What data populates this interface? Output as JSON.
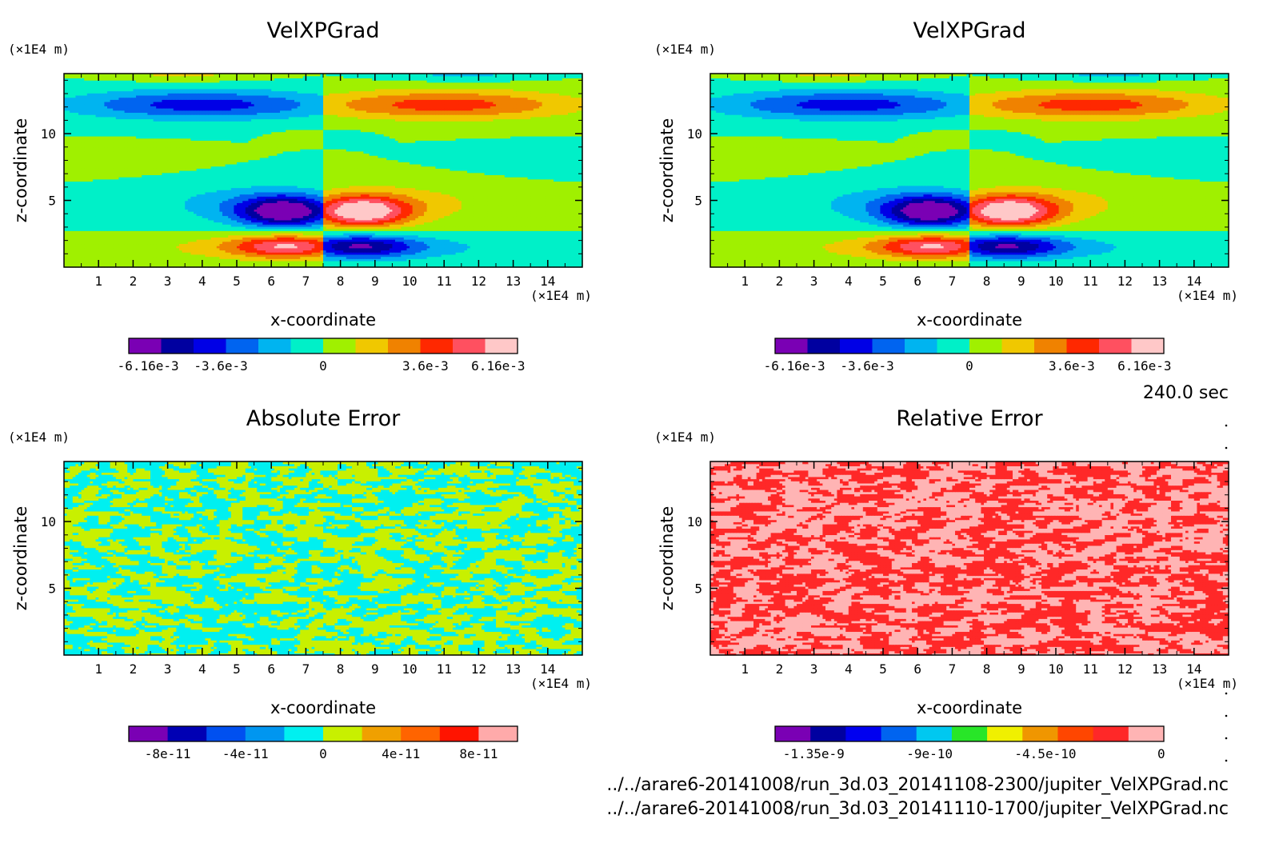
{
  "time_label": "240.0 sec",
  "files": [
    "../../arare6-20141008/run_3d.03_20141108-2300/jupiter_VelXPGrad.nc",
    "../../arare6-20141008/run_3d.03_20141110-1700/jupiter_VelXPGrad.nc"
  ],
  "chart_data": [
    {
      "type": "heatmap",
      "title": "VelXPGrad",
      "xlabel": "x-coordinate",
      "ylabel": "z-coordinate",
      "x_unit": "(×1E4 m)",
      "y_unit": "(×1E4 m)",
      "xlim": [
        0,
        15
      ],
      "ylim": [
        0,
        14.5
      ],
      "x_ticks": [
        1,
        2,
        3,
        4,
        5,
        6,
        7,
        8,
        9,
        10,
        11,
        12,
        13,
        14
      ],
      "y_ticks": [
        5,
        10
      ],
      "pattern": "dipole",
      "colors": [
        "#7a00b4",
        "#0000a0",
        "#0000e6",
        "#0064f0",
        "#00b4f0",
        "#00f0c8",
        "#a0f000",
        "#f0c800",
        "#f08200",
        "#ff2800",
        "#ff5060",
        "#ffc8c8"
      ],
      "colorbar_labels": [
        "-6.16e-3",
        "-3.6e-3",
        "0",
        "3.6e-3",
        "6.16e-3"
      ],
      "colorbar_positions": [
        -0.00616,
        -0.0036,
        0,
        0.0036,
        0.00616
      ],
      "colorbar_range": [
        -0.00684,
        0.00684
      ]
    },
    {
      "type": "heatmap",
      "title": "VelXPGrad",
      "xlabel": "x-coordinate",
      "ylabel": "z-coordinate",
      "x_unit": "(×1E4 m)",
      "y_unit": "(×1E4 m)",
      "xlim": [
        0,
        15
      ],
      "ylim": [
        0,
        14.5
      ],
      "x_ticks": [
        1,
        2,
        3,
        4,
        5,
        6,
        7,
        8,
        9,
        10,
        11,
        12,
        13,
        14
      ],
      "y_ticks": [
        5,
        10
      ],
      "pattern": "dipole",
      "colors": [
        "#7a00b4",
        "#0000a0",
        "#0000e6",
        "#0064f0",
        "#00b4f0",
        "#00f0c8",
        "#a0f000",
        "#f0c800",
        "#f08200",
        "#ff2800",
        "#ff5060",
        "#ffc8c8"
      ],
      "colorbar_labels": [
        "-6.16e-3",
        "-3.6e-3",
        "0",
        "3.6e-3",
        "6.16e-3"
      ],
      "colorbar_positions": [
        -0.00616,
        -0.0036,
        0,
        0.0036,
        0.00616
      ],
      "colorbar_range": [
        -0.00684,
        0.00684
      ]
    },
    {
      "type": "heatmap",
      "title": "Absolute Error",
      "xlabel": "x-coordinate",
      "ylabel": "z-coordinate",
      "x_unit": "(×1E4 m)",
      "y_unit": "(×1E4 m)",
      "xlim": [
        0,
        15
      ],
      "ylim": [
        0,
        14.5
      ],
      "x_ticks": [
        1,
        2,
        3,
        4,
        5,
        6,
        7,
        8,
        9,
        10,
        11,
        12,
        13,
        14
      ],
      "y_ticks": [
        5,
        10
      ],
      "pattern": "noise",
      "noise_colors": [
        "#00f0f0",
        "#c8f000"
      ],
      "colors": [
        "#7a00b4",
        "#0000b4",
        "#0050f0",
        "#0096f0",
        "#00f0f0",
        "#c8f000",
        "#f0a000",
        "#ff6400",
        "#ff1400",
        "#ffaaaa"
      ],
      "colorbar_labels": [
        "-8e-11",
        "-4e-11",
        "0",
        "4e-11",
        "8e-11"
      ],
      "colorbar_positions": [
        -8e-11,
        -4e-11,
        0,
        4e-11,
        8e-11
      ],
      "colorbar_range": [
        -1e-10,
        1e-10
      ]
    },
    {
      "type": "heatmap",
      "title": "Relative Error",
      "xlabel": "x-coordinate",
      "ylabel": "z-coordinate",
      "x_unit": "(×1E4 m)",
      "y_unit": "(×1E4 m)",
      "xlim": [
        0,
        15
      ],
      "ylim": [
        0,
        14.5
      ],
      "x_ticks": [
        1,
        2,
        3,
        4,
        5,
        6,
        7,
        8,
        9,
        10,
        11,
        12,
        13,
        14
      ],
      "y_ticks": [
        5,
        10
      ],
      "pattern": "noise",
      "noise_colors": [
        "#ffb4b4",
        "#ff2828"
      ],
      "colors": [
        "#7a00b4",
        "#0000a0",
        "#0000f0",
        "#0064f0",
        "#00c8f0",
        "#28e628",
        "#f0f000",
        "#f09600",
        "#ff4600",
        "#ff2828",
        "#ffb4b4"
      ],
      "colorbar_labels": [
        "-1.35e-9",
        "-9e-10",
        "-4.5e-10",
        "0"
      ],
      "colorbar_positions": [
        -1.35e-09,
        -9e-10,
        -4.5e-10,
        0
      ],
      "colorbar_range": [
        -1.5e-09,
        1e-11
      ]
    }
  ]
}
